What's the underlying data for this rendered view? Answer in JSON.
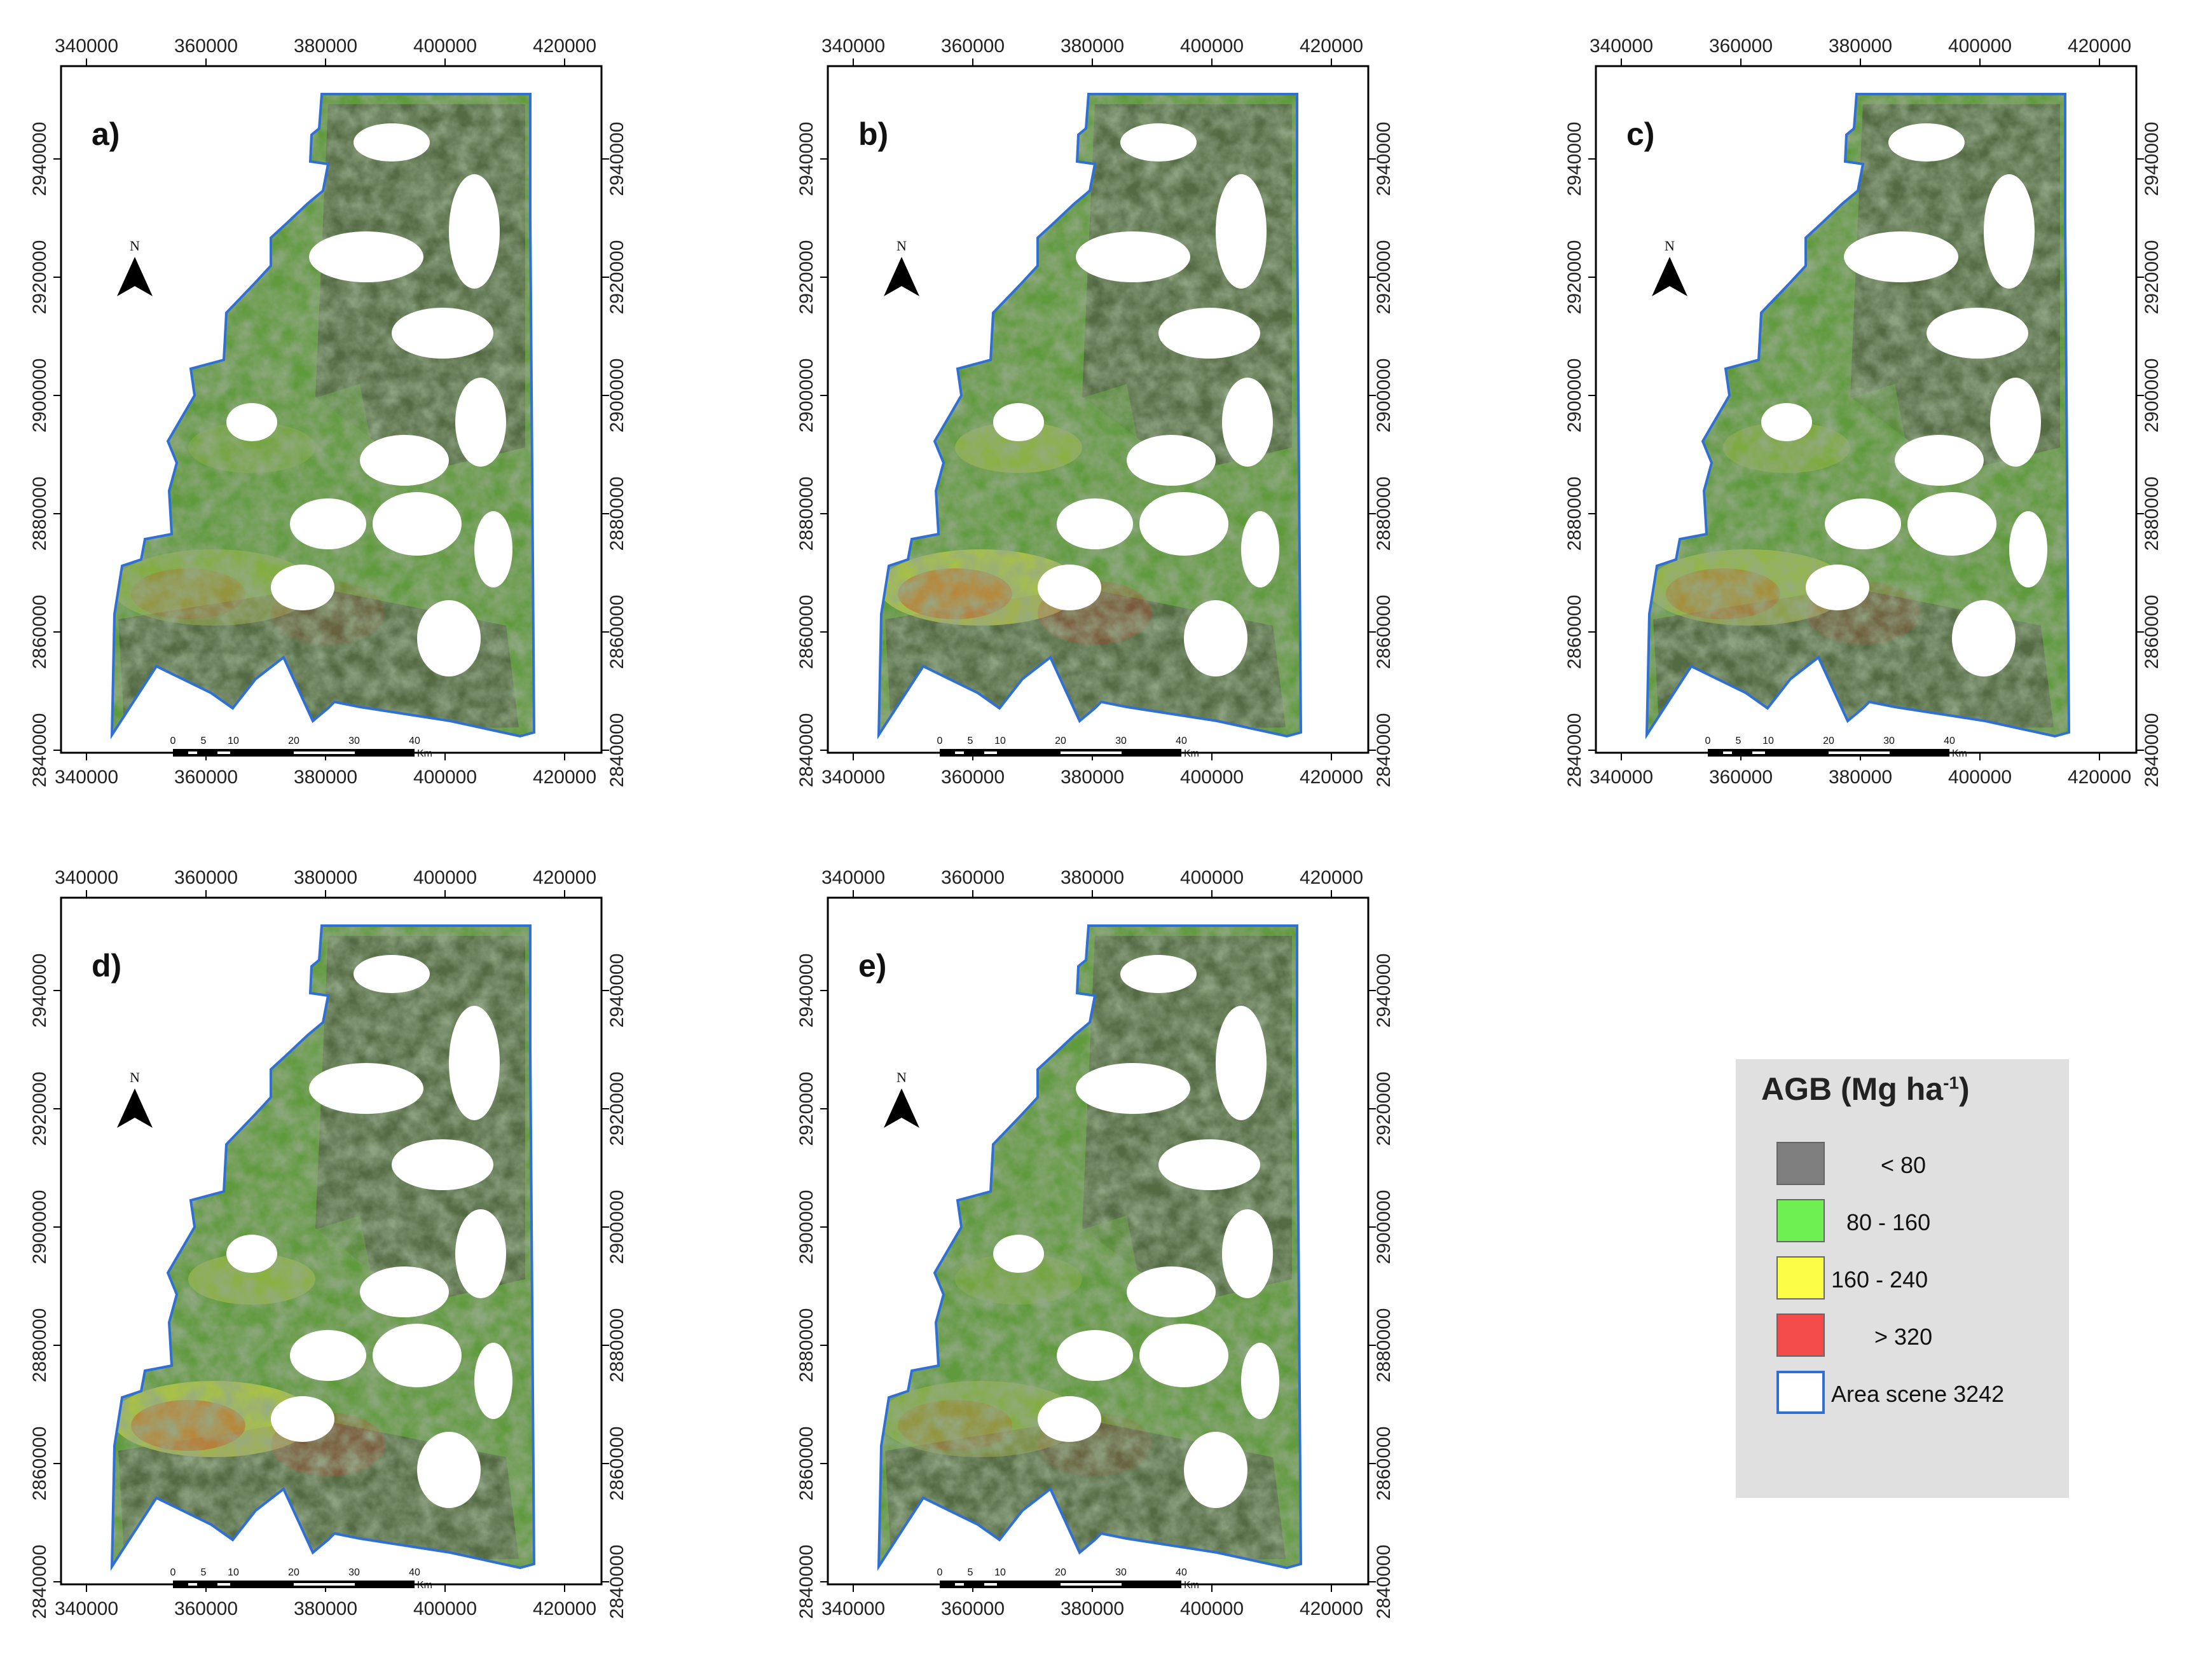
{
  "figure": {
    "x_ticks": [
      "340000",
      "360000",
      "380000",
      "400000",
      "420000"
    ],
    "y_ticks": [
      "2940000",
      "2920000",
      "2900000",
      "2880000",
      "2860000",
      "2840000"
    ],
    "panels": [
      {
        "label": "a)"
      },
      {
        "label": "b)"
      },
      {
        "label": "c)"
      },
      {
        "label": "d)"
      },
      {
        "label": "e)"
      }
    ],
    "north_arrow_label": "N",
    "scale_bar": {
      "ticks": [
        "0",
        "5",
        "10",
        "20",
        "30",
        "40"
      ],
      "unit": "Km"
    }
  },
  "legend": {
    "title_main": "AGB (Mg ha",
    "title_sup": "-1",
    "title_end": ")",
    "items": [
      {
        "label": "<  80",
        "color": "#7f7f7f",
        "border": "#666666"
      },
      {
        "label": "80 - 160",
        "color": "#6ff052",
        "border": "#666666"
      },
      {
        "label": "160 - 240",
        "color": "#fbfd47",
        "border": "#666666"
      },
      {
        "label": "> 320",
        "color": "#f44b4b",
        "border": "#666666"
      },
      {
        "label": "Area scene 3242",
        "color": "#ffffff",
        "border": "#2f6fd6"
      }
    ]
  },
  "colors": {
    "boundary": "#2f6fd6",
    "forest_dark": "#4f5a45",
    "forest_green": "#5f9a3c",
    "forest_yellow": "#c8d24a",
    "forest_red": "#d0392c"
  }
}
